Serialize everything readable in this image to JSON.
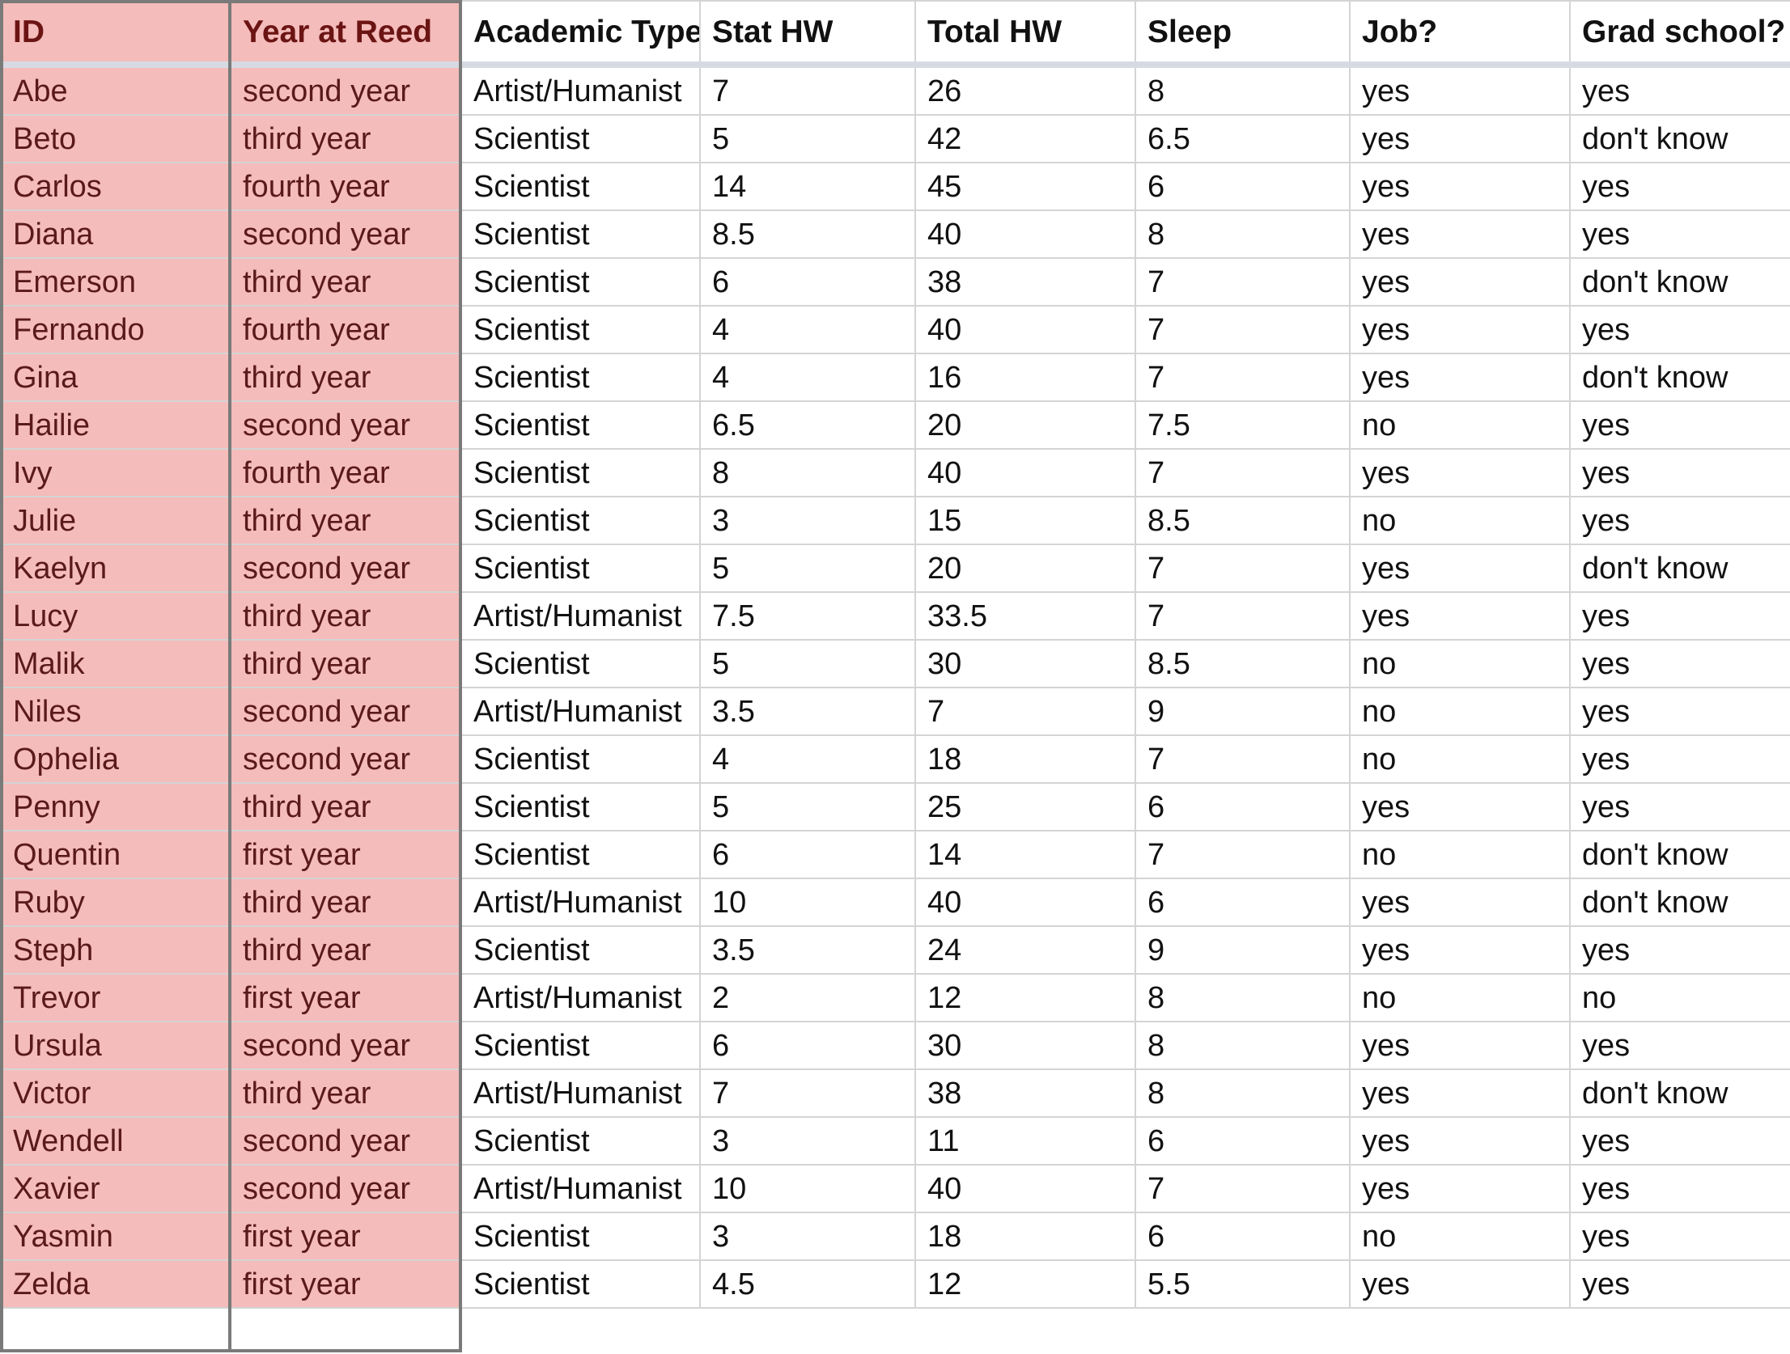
{
  "columns": [
    "ID",
    "Year at Reed",
    "Academic Type",
    "Stat HW",
    "Total HW",
    "Sleep",
    "Job?",
    "Grad school?"
  ],
  "highlight_color": "#f4bcba",
  "rows": [
    [
      "Abe",
      "second year",
      "Artist/Humanist",
      "7",
      "26",
      "8",
      "yes",
      "yes"
    ],
    [
      "Beto",
      "third year",
      "Scientist",
      "5",
      "42",
      "6.5",
      "yes",
      "don't know"
    ],
    [
      "Carlos",
      "fourth year",
      "Scientist",
      "14",
      "45",
      "6",
      "yes",
      "yes"
    ],
    [
      "Diana",
      "second year",
      "Scientist",
      "8.5",
      "40",
      "8",
      "yes",
      "yes"
    ],
    [
      "Emerson",
      "third year",
      "Scientist",
      "6",
      "38",
      "7",
      "yes",
      "don't know"
    ],
    [
      "Fernando",
      "fourth year",
      "Scientist",
      "4",
      "40",
      "7",
      "yes",
      "yes"
    ],
    [
      "Gina",
      "third year",
      "Scientist",
      "4",
      "16",
      "7",
      "yes",
      "don't know"
    ],
    [
      "Hailie",
      "second year",
      "Scientist",
      "6.5",
      "20",
      "7.5",
      "no",
      "yes"
    ],
    [
      "Ivy",
      "fourth year",
      "Scientist",
      "8",
      "40",
      "7",
      "yes",
      "yes"
    ],
    [
      "Julie",
      "third year",
      "Scientist",
      "3",
      "15",
      "8.5",
      "no",
      "yes"
    ],
    [
      "Kaelyn",
      "second year",
      "Scientist",
      "5",
      "20",
      "7",
      "yes",
      "don't know"
    ],
    [
      "Lucy",
      "third year",
      "Artist/Humanist",
      "7.5",
      "33.5",
      "7",
      "yes",
      "yes"
    ],
    [
      "Malik",
      "third year",
      "Scientist",
      "5",
      "30",
      "8.5",
      "no",
      "yes"
    ],
    [
      "Niles",
      "second year",
      "Artist/Humanist",
      "3.5",
      "7",
      "9",
      "no",
      "yes"
    ],
    [
      "Ophelia",
      "second year",
      "Scientist",
      "4",
      "18",
      "7",
      "no",
      "yes"
    ],
    [
      "Penny",
      "third year",
      "Scientist",
      "5",
      "25",
      "6",
      "yes",
      "yes"
    ],
    [
      "Quentin",
      "first year",
      "Scientist",
      "6",
      "14",
      "7",
      "no",
      "don't know"
    ],
    [
      "Ruby",
      "third year",
      "Artist/Humanist",
      "10",
      "40",
      "6",
      "yes",
      "don't know"
    ],
    [
      "Steph",
      "third year",
      "Scientist",
      "3.5",
      "24",
      "9",
      "yes",
      "yes"
    ],
    [
      "Trevor",
      "first year",
      "Artist/Humanist",
      "2",
      "12",
      "8",
      "no",
      "no"
    ],
    [
      "Ursula",
      "second year",
      "Scientist",
      "6",
      "30",
      "8",
      "yes",
      "yes"
    ],
    [
      "Victor",
      "third year",
      "Artist/Humanist",
      "7",
      "38",
      "8",
      "yes",
      "don't know"
    ],
    [
      "Wendell",
      "second year",
      "Scientist",
      "3",
      "11",
      "6",
      "yes",
      "yes"
    ],
    [
      "Xavier",
      "second year",
      "Artist/Humanist",
      "10",
      "40",
      "7",
      "yes",
      "yes"
    ],
    [
      "Yasmin",
      "first year",
      "Scientist",
      "3",
      "18",
      "6",
      "no",
      "yes"
    ],
    [
      "Zelda",
      "first year",
      "Scientist",
      "4.5",
      "12",
      "5.5",
      "yes",
      "yes"
    ]
  ]
}
